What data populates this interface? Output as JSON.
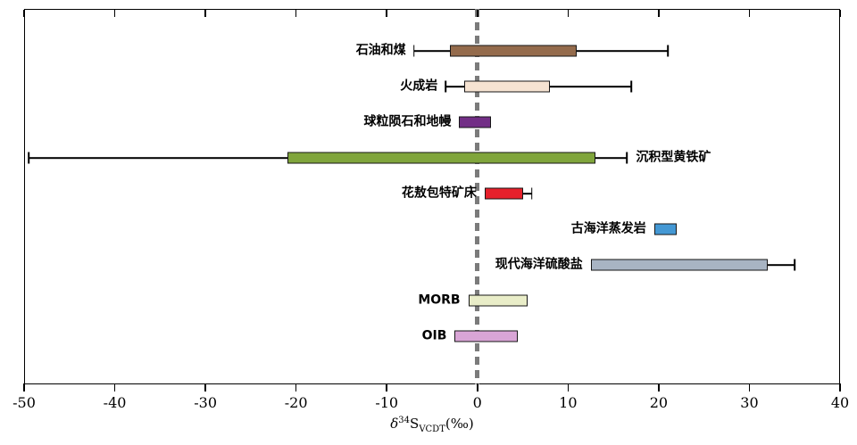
{
  "axis": {
    "delta": "δ",
    "sup": "34",
    "symbol": "S",
    "sub": "VCDT",
    "unit": "(‰)"
  },
  "chart_data": {
    "type": "bar",
    "subtype": "horizontal-range-bars-with-whiskers",
    "title": "",
    "xlabel": "δ34SVCDT(‰)",
    "xlim": [
      -50,
      40
    ],
    "xticks": [
      -50,
      -40,
      -30,
      -20,
      -10,
      0,
      10,
      20,
      30,
      40
    ],
    "grid": false,
    "legend": "none",
    "reference_line": {
      "x": 0,
      "style": "dashed",
      "color": "#7b7b7b"
    },
    "series": [
      {
        "label": "石油和煤",
        "bar": [
          -3,
          11
        ],
        "whisker": [
          -7,
          21
        ],
        "color": "#946b4c",
        "label_side": "left",
        "bold": false
      },
      {
        "label": "火成岩",
        "bar": [
          -1.5,
          8
        ],
        "whisker": [
          -3.5,
          17
        ],
        "color": "#f6e3d2",
        "label_side": "left",
        "bold": false
      },
      {
        "label": "球粒陨石和地幔",
        "bar": [
          -2,
          1.5
        ],
        "whisker": null,
        "color": "#722e86",
        "label_side": "left",
        "bold": false
      },
      {
        "label": "沉积型黄铁矿",
        "bar": [
          -21,
          13
        ],
        "whisker": [
          -49.5,
          16.5
        ],
        "color": "#80a53c",
        "label_side": "right",
        "bold": false
      },
      {
        "label": "花敖包特矿床",
        "bar": [
          0.8,
          5
        ],
        "whisker": [
          0.8,
          6
        ],
        "color": "#e6202b",
        "label_side": "left",
        "bold": true
      },
      {
        "label": "古海洋蒸发岩",
        "bar": [
          19.5,
          22
        ],
        "whisker": null,
        "color": "#4498d4",
        "label_side": "left",
        "bold": false
      },
      {
        "label": "现代海洋硫酸盐",
        "bar": [
          12.5,
          32
        ],
        "whisker": [
          12.5,
          35
        ],
        "color": "#a8b4c3",
        "label_side": "left",
        "bold": false
      },
      {
        "label": "MORB",
        "bar": [
          -1,
          5.5
        ],
        "whisker": null,
        "color": "#e9edc8",
        "label_side": "left",
        "bold": false
      },
      {
        "label": "OIB",
        "bar": [
          -2.5,
          4.5
        ],
        "whisker": null,
        "color": "#d9a5d6",
        "label_side": "left",
        "bold": false
      }
    ]
  }
}
